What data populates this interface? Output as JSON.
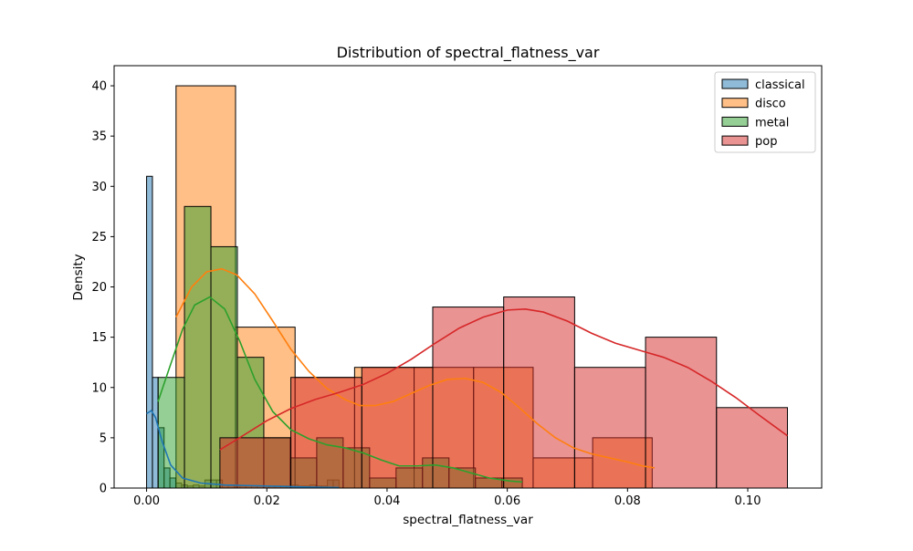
{
  "chart_data": {
    "type": "histogram",
    "title": "Distribution of spectral_flatness_var",
    "xlabel": "spectral_flatness_var",
    "ylabel": "Density",
    "xlim": [
      -0.0054,
      0.1123
    ],
    "ylim": [
      0,
      42.0
    ],
    "x_ticks": [
      {
        "value": 0.0,
        "label": "0.00"
      },
      {
        "value": 0.02,
        "label": "0.02"
      },
      {
        "value": 0.04,
        "label": "0.04"
      },
      {
        "value": 0.06,
        "label": "0.06"
      },
      {
        "value": 0.08,
        "label": "0.08"
      },
      {
        "value": 0.1,
        "label": "0.10"
      }
    ],
    "y_ticks": [
      {
        "value": 0,
        "label": "0"
      },
      {
        "value": 5,
        "label": "5"
      },
      {
        "value": 10,
        "label": "10"
      },
      {
        "value": 15,
        "label": "15"
      },
      {
        "value": 20,
        "label": "20"
      },
      {
        "value": 25,
        "label": "25"
      },
      {
        "value": 30,
        "label": "30"
      },
      {
        "value": 35,
        "label": "35"
      },
      {
        "value": 40,
        "label": "40"
      }
    ],
    "grid": false,
    "legend_position": "top-right",
    "series": [
      {
        "name": "classical",
        "color": "#1f77b4",
        "bins": [
          {
            "x0": 0.0,
            "x1": 0.00097,
            "density": 31
          },
          {
            "x0": 0.00097,
            "x1": 0.00194,
            "density": 11
          },
          {
            "x0": 0.00194,
            "x1": 0.00291,
            "density": 6
          },
          {
            "x0": 0.00291,
            "x1": 0.00388,
            "density": 2
          },
          {
            "x0": 0.00388,
            "x1": 0.00485,
            "density": 1
          },
          {
            "x0": 0.00485,
            "x1": 0.00582,
            "density": 0.5
          },
          {
            "x0": 0.00582,
            "x1": 0.00679,
            "density": 0.3
          },
          {
            "x0": 0.00679,
            "x1": 0.00776,
            "density": 0.2
          },
          {
            "x0": 0.00776,
            "x1": 0.00873,
            "density": 0.3
          },
          {
            "x0": 0.00873,
            "x1": 0.0097,
            "density": 0.2
          },
          {
            "x0": 0.0097,
            "x1": 0.01067,
            "density": 0.8
          },
          {
            "x0": 0.01067,
            "x1": 0.01164,
            "density": 0.8
          },
          {
            "x0": 0.01164,
            "x1": 0.01261,
            "density": 0.8
          },
          {
            "x0": 0.01261,
            "x1": 0.01358,
            "density": 0.3
          },
          {
            "x0": 0.01358,
            "x1": 0.01455,
            "density": 0.3
          },
          {
            "x0": 0.01455,
            "x1": 0.01552,
            "density": 0.3
          },
          {
            "x0": 0.01552,
            "x1": 0.01649,
            "density": 0.2
          },
          {
            "x0": 0.01649,
            "x1": 0.01746,
            "density": 0.2
          },
          {
            "x0": 0.01746,
            "x1": 0.01843,
            "density": 0.2
          },
          {
            "x0": 0.01843,
            "x1": 0.0194,
            "density": 0.2
          },
          {
            "x0": 0.0194,
            "x1": 0.02037,
            "density": 0.2
          },
          {
            "x0": 0.02037,
            "x1": 0.02134,
            "density": 0.2
          },
          {
            "x0": 0.02134,
            "x1": 0.02231,
            "density": 0.2
          },
          {
            "x0": 0.02231,
            "x1": 0.02328,
            "density": 0.2
          },
          {
            "x0": 0.02328,
            "x1": 0.02425,
            "density": 0.2
          },
          {
            "x0": 0.02425,
            "x1": 0.02522,
            "density": 0.3
          },
          {
            "x0": 0.02522,
            "x1": 0.02619,
            "density": 0.2
          },
          {
            "x0": 0.02619,
            "x1": 0.02716,
            "density": 0.2
          },
          {
            "x0": 0.02716,
            "x1": 0.02813,
            "density": 0.3
          },
          {
            "x0": 0.02813,
            "x1": 0.0291,
            "density": 0.2
          },
          {
            "x0": 0.0291,
            "x1": 0.03007,
            "density": 0.2
          },
          {
            "x0": 0.03007,
            "x1": 0.03104,
            "density": 0.8
          },
          {
            "x0": 0.03104,
            "x1": 0.03201,
            "density": 0.8
          }
        ],
        "kde": [
          [
            0.0,
            7.4
          ],
          [
            0.0008,
            7.7
          ],
          [
            0.0015,
            7.0
          ],
          [
            0.0025,
            4.8
          ],
          [
            0.004,
            2.3
          ],
          [
            0.006,
            1.0
          ],
          [
            0.009,
            0.5
          ],
          [
            0.013,
            0.3
          ],
          [
            0.02,
            0.2
          ],
          [
            0.027,
            0.1
          ],
          [
            0.032,
            0.05
          ]
        ]
      },
      {
        "name": "disco",
        "color": "#ff7f0e",
        "bins": [
          {
            "x0": 0.0049,
            "x1": 0.0148,
            "density": 40
          },
          {
            "x0": 0.0148,
            "x1": 0.0247,
            "density": 16
          },
          {
            "x0": 0.0247,
            "x1": 0.0346,
            "density": 11
          },
          {
            "x0": 0.0346,
            "x1": 0.0445,
            "density": 12
          },
          {
            "x0": 0.0445,
            "x1": 0.0544,
            "density": 12
          },
          {
            "x0": 0.0544,
            "x1": 0.0643,
            "density": 12
          },
          {
            "x0": 0.0643,
            "x1": 0.0742,
            "density": 3
          },
          {
            "x0": 0.0742,
            "x1": 0.0841,
            "density": 5
          }
        ],
        "kde": [
          [
            0.0049,
            17.0
          ],
          [
            0.0075,
            20.0
          ],
          [
            0.01,
            21.5
          ],
          [
            0.0125,
            21.8
          ],
          [
            0.015,
            21.2
          ],
          [
            0.018,
            19.3
          ],
          [
            0.021,
            16.6
          ],
          [
            0.024,
            13.8
          ],
          [
            0.027,
            11.6
          ],
          [
            0.03,
            9.9
          ],
          [
            0.033,
            8.8
          ],
          [
            0.0355,
            8.2
          ],
          [
            0.038,
            8.2
          ],
          [
            0.041,
            8.6
          ],
          [
            0.044,
            9.4
          ],
          [
            0.047,
            10.2
          ],
          [
            0.05,
            10.8
          ],
          [
            0.053,
            10.9
          ],
          [
            0.056,
            10.5
          ],
          [
            0.059,
            9.5
          ],
          [
            0.062,
            8.0
          ],
          [
            0.065,
            6.4
          ],
          [
            0.068,
            5.0
          ],
          [
            0.071,
            4.0
          ],
          [
            0.074,
            3.4
          ],
          [
            0.077,
            3.0
          ],
          [
            0.08,
            2.6
          ],
          [
            0.0825,
            2.2
          ],
          [
            0.0845,
            2.0
          ]
        ]
      },
      {
        "name": "metal",
        "color": "#2ca02c",
        "bins": [
          {
            "x0": 0.0019,
            "x1": 0.0063,
            "density": 11
          },
          {
            "x0": 0.0063,
            "x1": 0.0107,
            "density": 28
          },
          {
            "x0": 0.0107,
            "x1": 0.0151,
            "density": 24
          },
          {
            "x0": 0.0151,
            "x1": 0.0195,
            "density": 13
          },
          {
            "x0": 0.0195,
            "x1": 0.0239,
            "density": 5
          },
          {
            "x0": 0.0239,
            "x1": 0.0283,
            "density": 3
          },
          {
            "x0": 0.0283,
            "x1": 0.0327,
            "density": 5
          },
          {
            "x0": 0.0327,
            "x1": 0.0371,
            "density": 4
          },
          {
            "x0": 0.0371,
            "x1": 0.0415,
            "density": 1
          },
          {
            "x0": 0.0415,
            "x1": 0.0459,
            "density": 2
          },
          {
            "x0": 0.0459,
            "x1": 0.0503,
            "density": 3
          },
          {
            "x0": 0.0503,
            "x1": 0.0547,
            "density": 2
          },
          {
            "x0": 0.0547,
            "x1": 0.0591,
            "density": 1
          },
          {
            "x0": 0.0591,
            "x1": 0.0625,
            "density": 1
          }
        ],
        "kde": [
          [
            0.0019,
            8.6
          ],
          [
            0.004,
            12.3
          ],
          [
            0.006,
            15.8
          ],
          [
            0.008,
            18.2
          ],
          [
            0.0105,
            19.0
          ],
          [
            0.013,
            17.8
          ],
          [
            0.0155,
            14.6
          ],
          [
            0.018,
            10.8
          ],
          [
            0.021,
            7.6
          ],
          [
            0.024,
            5.8
          ],
          [
            0.027,
            4.9
          ],
          [
            0.03,
            4.3
          ],
          [
            0.033,
            4.0
          ],
          [
            0.036,
            3.5
          ],
          [
            0.039,
            2.8
          ],
          [
            0.042,
            2.2
          ],
          [
            0.045,
            2.2
          ],
          [
            0.048,
            2.3
          ],
          [
            0.051,
            2.0
          ],
          [
            0.054,
            1.5
          ],
          [
            0.057,
            1.0
          ],
          [
            0.0605,
            0.7
          ],
          [
            0.0625,
            0.6
          ]
        ]
      },
      {
        "name": "pop",
        "color": "#d62728",
        "bins": [
          {
            "x0": 0.0122,
            "x1": 0.024,
            "density": 5
          },
          {
            "x0": 0.024,
            "x1": 0.0358,
            "density": 11
          },
          {
            "x0": 0.0358,
            "x1": 0.0476,
            "density": 12
          },
          {
            "x0": 0.0476,
            "x1": 0.0594,
            "density": 18
          },
          {
            "x0": 0.0594,
            "x1": 0.0712,
            "density": 19
          },
          {
            "x0": 0.0712,
            "x1": 0.083,
            "density": 12
          },
          {
            "x0": 0.083,
            "x1": 0.0948,
            "density": 15
          },
          {
            "x0": 0.0948,
            "x1": 0.1066,
            "density": 8
          }
        ],
        "kde": [
          [
            0.0122,
            3.8
          ],
          [
            0.016,
            5.2
          ],
          [
            0.02,
            6.7
          ],
          [
            0.024,
            7.9
          ],
          [
            0.028,
            8.8
          ],
          [
            0.032,
            9.5
          ],
          [
            0.036,
            10.3
          ],
          [
            0.04,
            11.4
          ],
          [
            0.044,
            12.8
          ],
          [
            0.048,
            14.4
          ],
          [
            0.052,
            15.9
          ],
          [
            0.056,
            17.0
          ],
          [
            0.06,
            17.7
          ],
          [
            0.063,
            17.8
          ],
          [
            0.066,
            17.5
          ],
          [
            0.07,
            16.6
          ],
          [
            0.074,
            15.4
          ],
          [
            0.078,
            14.4
          ],
          [
            0.082,
            13.7
          ],
          [
            0.086,
            13.0
          ],
          [
            0.09,
            12.0
          ],
          [
            0.094,
            10.6
          ],
          [
            0.098,
            9.0
          ],
          [
            0.102,
            7.2
          ],
          [
            0.1066,
            5.2
          ]
        ]
      }
    ]
  }
}
